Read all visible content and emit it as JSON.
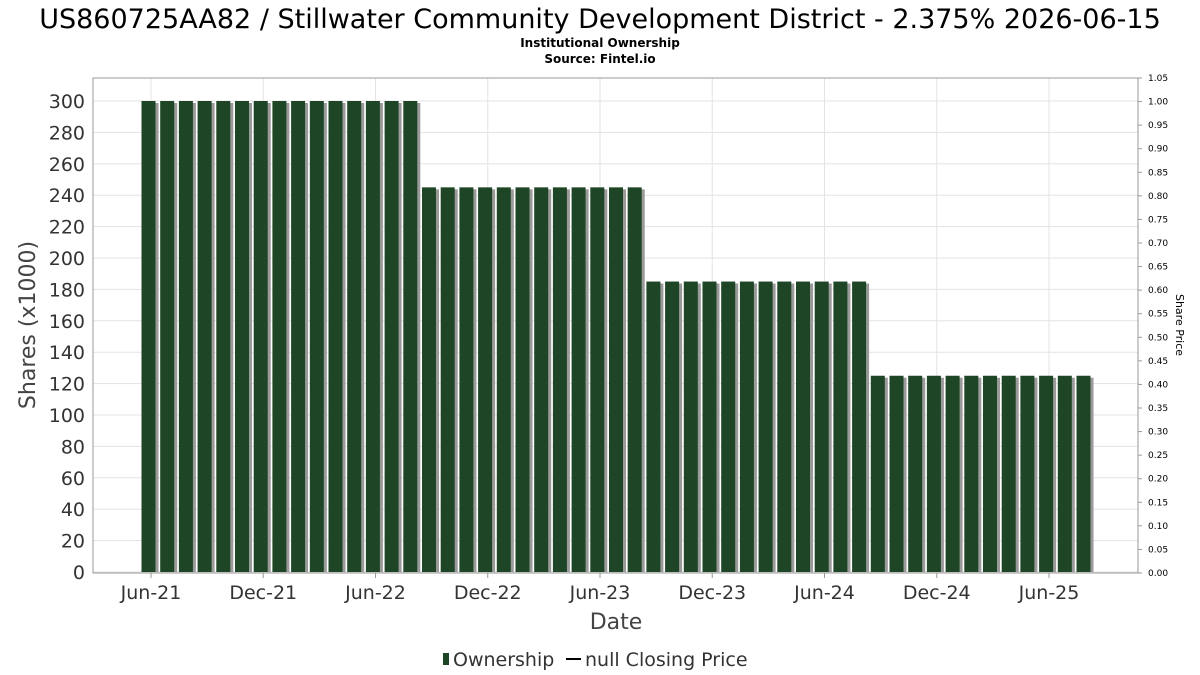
{
  "chart_data": {
    "type": "bar",
    "title": "US860725AA82 / Stillwater Community Development District - 2.375% 2026-06-15",
    "subtitle_lines": [
      "Institutional Ownership",
      "Source: Fintel.io"
    ],
    "xlabel": "Date",
    "ylabel": "Shares (x1000)",
    "y2label": "Share Price",
    "ylim": [
      0,
      300
    ],
    "y_ticks": [
      "0",
      "20",
      "40",
      "60",
      "80",
      "100",
      "120",
      "140",
      "160",
      "180",
      "200",
      "220",
      "240",
      "260",
      "280",
      "300"
    ],
    "y2lim": [
      0,
      1.05
    ],
    "y2_ticks": [
      "0.00",
      "0.05",
      "0.10",
      "0.15",
      "0.20",
      "0.25",
      "0.30",
      "0.35",
      "0.40",
      "0.45",
      "0.50",
      "0.55",
      "0.60",
      "0.65",
      "0.70",
      "0.75",
      "0.80",
      "0.85",
      "0.90",
      "0.95",
      "1.00",
      "1.05"
    ],
    "x_ticks": [
      "Jun-21",
      "Dec-21",
      "Jun-22",
      "Dec-22",
      "Jun-23",
      "Dec-23",
      "Jun-24",
      "Dec-24",
      "Jun-25"
    ],
    "grid": true,
    "legend_position": "bottom",
    "series": [
      {
        "name": "Ownership",
        "color": "#1e4526",
        "values": [
          300,
          300,
          300,
          300,
          300,
          300,
          300,
          300,
          300,
          300,
          300,
          300,
          300,
          300,
          300,
          245,
          245,
          245,
          245,
          245,
          245,
          245,
          245,
          245,
          245,
          245,
          245,
          185,
          185,
          185,
          185,
          185,
          185,
          185,
          185,
          185,
          185,
          185,
          185,
          125,
          125,
          125,
          125,
          125,
          125,
          125,
          125,
          125,
          125,
          125,
          125
        ]
      }
    ],
    "legend": [
      {
        "label": "Ownership",
        "icon": "bar-swatch-icon",
        "color": "#1e4526"
      },
      {
        "label": "null Closing Price",
        "icon": "line-swatch-icon",
        "color": "#000000"
      }
    ]
  }
}
